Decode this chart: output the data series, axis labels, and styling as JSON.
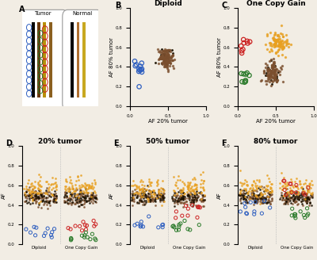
{
  "panel_B_title": "Diploid",
  "panel_C_title": "One Copy Gain",
  "panel_D_title": "20% tumor",
  "panel_E_title": "50% tumor",
  "panel_F_title": "80% tumor",
  "xlabel_BC": "AF 20% tumor",
  "ylabel_BC": "AF 80% tumor",
  "ylabel_DEF": "AF",
  "bg_color": "#F2EDE4",
  "dot_color_brown": "#7B4F2E",
  "dot_color_orange": "#E8A020",
  "dot_color_black": "#1A1000",
  "circle_blue": "#3060C0",
  "circle_red": "#CC2222",
  "circle_green": "#2A7A2A",
  "panel_A_tumor_bars": [
    "#050505",
    "#6B3A10",
    "#B8900A",
    "#8B6020"
  ],
  "panel_A_normal_bars": [
    "#050505",
    "#B07030",
    "#C8A820"
  ],
  "seed": 7
}
